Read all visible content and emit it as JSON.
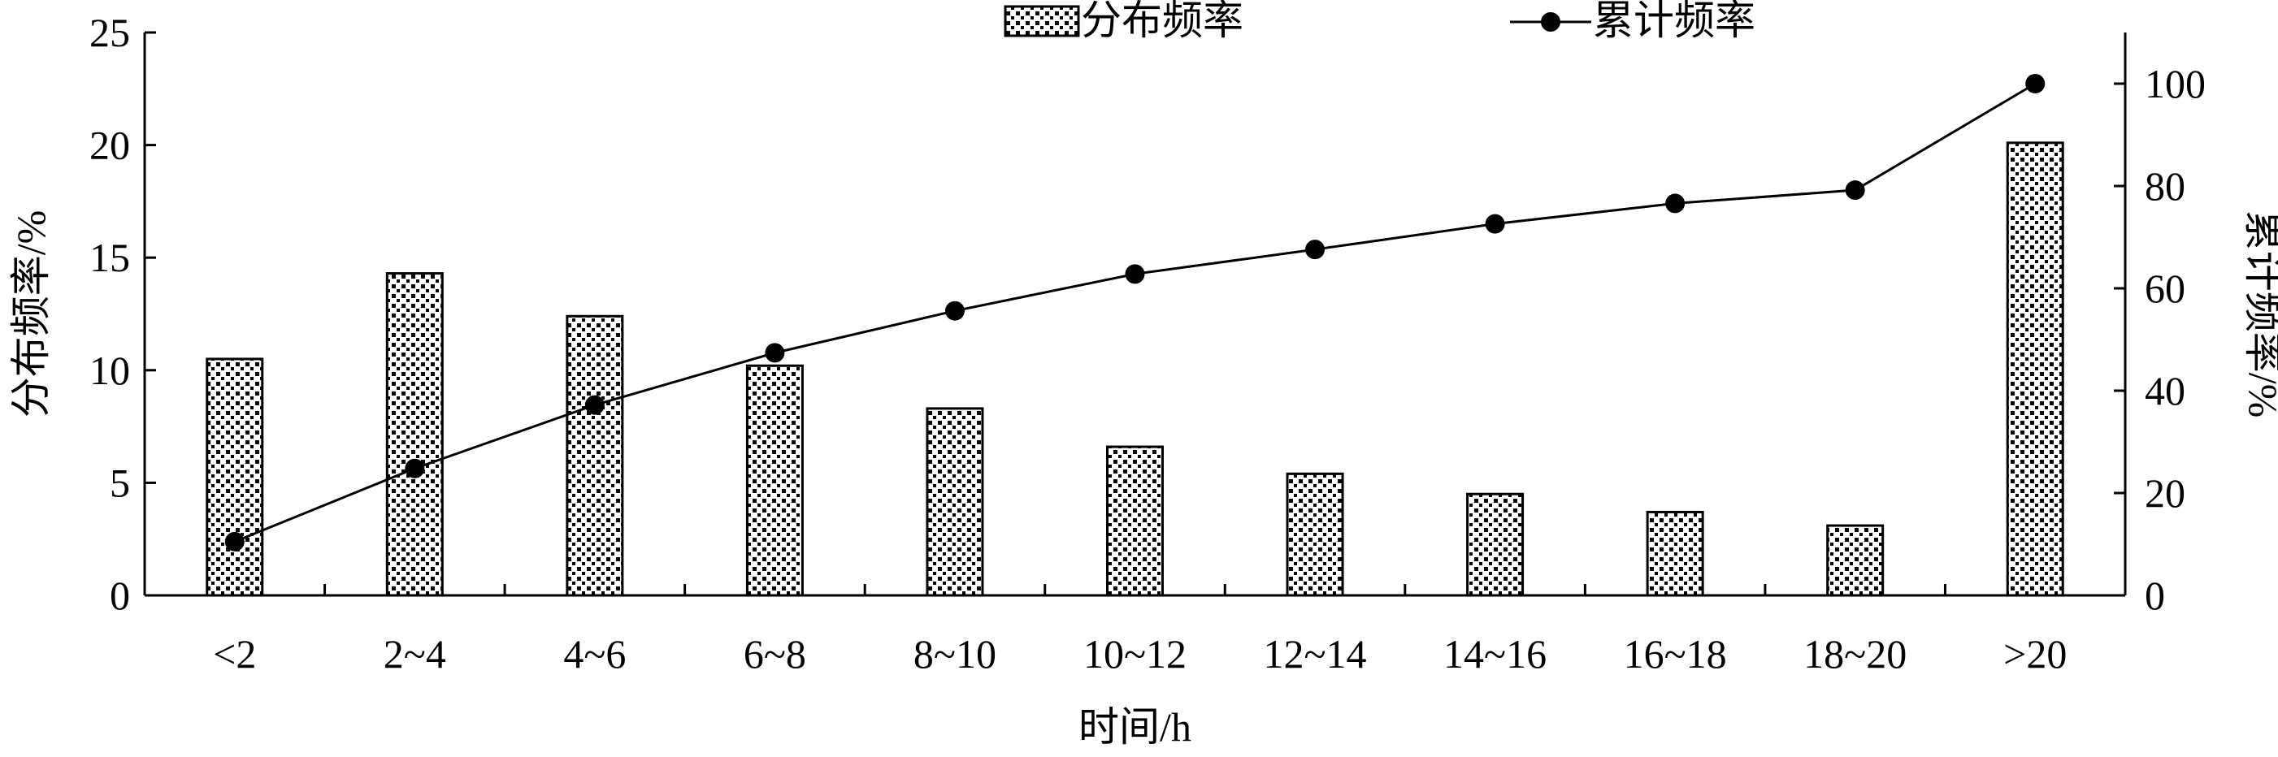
{
  "chart_data": {
    "type": "bar",
    "categories": [
      "<2",
      "2~4",
      "4~6",
      "6~8",
      "8~10",
      "10~12",
      "12~14",
      "14~16",
      "16~18",
      "18~20",
      ">20"
    ],
    "series": [
      {
        "name": "分布频率",
        "kind": "bar",
        "axis": "left",
        "values": [
          10.5,
          14.3,
          12.4,
          10.2,
          8.3,
          6.6,
          5.4,
          4.5,
          3.7,
          3.1,
          20.1
        ]
      },
      {
        "name": "累计频率",
        "kind": "line",
        "axis": "right",
        "values": [
          10.5,
          24.8,
          37.2,
          47.4,
          55.6,
          62.8,
          67.6,
          72.6,
          76.6,
          79.2,
          100
        ]
      }
    ],
    "xlabel": "时间/h",
    "ylabel": "分布频率/%",
    "y2label": "累计频率/%",
    "ylim": [
      0,
      25
    ],
    "y2lim": [
      0,
      110
    ],
    "yticks": [
      "0",
      "5",
      "10",
      "15",
      "20",
      "25"
    ],
    "y2ticks": [
      "0",
      "20",
      "40",
      "60",
      "80",
      "100"
    ],
    "grid": false,
    "legend": "top-center",
    "colors": {
      "bar_fill": "#ffffff",
      "bar_pattern": "#000000",
      "line": "#000000"
    }
  }
}
